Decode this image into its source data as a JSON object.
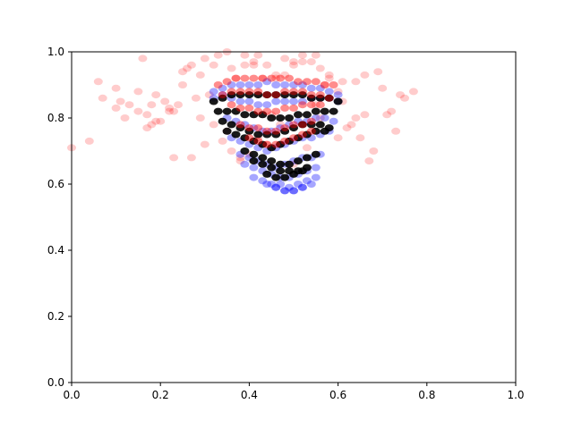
{
  "chart_data": {
    "type": "scatter",
    "title": "",
    "xlabel": "",
    "ylabel": "",
    "xlim": [
      0,
      1
    ],
    "ylim": [
      0,
      1
    ],
    "grid": false,
    "legend": "none",
    "x_ticks": [
      "0.0",
      "0.2",
      "0.4",
      "0.6",
      "0.8",
      "1.0"
    ],
    "y_ticks": [
      "0.0",
      "0.2",
      "0.4",
      "0.6",
      "0.8",
      "1.0"
    ],
    "series": [
      {
        "color": "#ff0000",
        "opacity": 0.2,
        "x": [
          0.0,
          0.04,
          0.06,
          0.1,
          0.1,
          0.11,
          0.13,
          0.15,
          0.15,
          0.16,
          0.17,
          0.18,
          0.18,
          0.19,
          0.2,
          0.21,
          0.22,
          0.23,
          0.24,
          0.25,
          0.26,
          0.27,
          0.28,
          0.29,
          0.3,
          0.31,
          0.32,
          0.33,
          0.35,
          0.36,
          0.37,
          0.39,
          0.41,
          0.42,
          0.44,
          0.46,
          0.48,
          0.5,
          0.52,
          0.54,
          0.56,
          0.58,
          0.6,
          0.61,
          0.62,
          0.63,
          0.64,
          0.65,
          0.66,
          0.67,
          0.68,
          0.69,
          0.7,
          0.72,
          0.73,
          0.74,
          0.75,
          0.77,
          0.34,
          0.36,
          0.38,
          0.4,
          0.44,
          0.47,
          0.5,
          0.53,
          0.56,
          0.58,
          0.32,
          0.35,
          0.38,
          0.42,
          0.45,
          0.48,
          0.52,
          0.55,
          0.6,
          0.64,
          0.3,
          0.27,
          0.23,
          0.19,
          0.17,
          0.12,
          0.07,
          0.66,
          0.71,
          0.55,
          0.5,
          0.43,
          0.39,
          0.46,
          0.41,
          0.57,
          0.61,
          0.25,
          0.22,
          0.29
        ],
        "y": [
          0.71,
          0.73,
          0.91,
          0.89,
          0.83,
          0.85,
          0.84,
          0.88,
          0.82,
          0.98,
          0.81,
          0.78,
          0.84,
          0.87,
          0.79,
          0.85,
          0.82,
          0.82,
          0.84,
          0.9,
          0.95,
          0.96,
          0.86,
          0.93,
          0.98,
          0.87,
          0.96,
          0.99,
          1.0,
          0.95,
          0.92,
          0.99,
          0.97,
          0.99,
          0.96,
          0.93,
          0.98,
          0.96,
          0.99,
          0.97,
          0.95,
          0.93,
          0.88,
          0.85,
          0.77,
          0.78,
          0.8,
          0.74,
          0.81,
          0.67,
          0.7,
          0.94,
          0.89,
          0.82,
          0.76,
          0.87,
          0.86,
          0.88,
          0.73,
          0.7,
          0.68,
          0.69,
          0.72,
          0.78,
          0.66,
          0.71,
          0.8,
          0.92,
          0.78,
          0.76,
          0.67,
          0.74,
          0.81,
          0.93,
          0.97,
          0.84,
          0.74,
          0.91,
          0.72,
          0.68,
          0.68,
          0.79,
          0.77,
          0.8,
          0.86,
          0.93,
          0.81,
          0.99,
          0.97,
          0.92,
          0.96,
          0.92,
          0.96,
          0.9,
          0.91,
          0.94,
          0.83,
          0.8
        ]
      },
      {
        "color": "#0000ff",
        "opacity": 0.35,
        "x": [
          0.32,
          0.34,
          0.36,
          0.38,
          0.4,
          0.42,
          0.44,
          0.46,
          0.48,
          0.5,
          0.52,
          0.54,
          0.56,
          0.58,
          0.6,
          0.32,
          0.34,
          0.36,
          0.38,
          0.4,
          0.42,
          0.44,
          0.46,
          0.48,
          0.5,
          0.52,
          0.54,
          0.56,
          0.58,
          0.6,
          0.35,
          0.37,
          0.39,
          0.41,
          0.43,
          0.45,
          0.47,
          0.49,
          0.51,
          0.53,
          0.55,
          0.57,
          0.59,
          0.36,
          0.38,
          0.4,
          0.42,
          0.44,
          0.46,
          0.48,
          0.5,
          0.52,
          0.54,
          0.56,
          0.58,
          0.38,
          0.4,
          0.42,
          0.44,
          0.46,
          0.48,
          0.5,
          0.52,
          0.54,
          0.56,
          0.39,
          0.41,
          0.43,
          0.45,
          0.47,
          0.49,
          0.51,
          0.53,
          0.55,
          0.41,
          0.43,
          0.45,
          0.47,
          0.49,
          0.51,
          0.53,
          0.55,
          0.44,
          0.46,
          0.48,
          0.5,
          0.52,
          0.54,
          0.46,
          0.48,
          0.5,
          0.52
        ],
        "y": [
          0.88,
          0.89,
          0.9,
          0.9,
          0.9,
          0.9,
          0.91,
          0.9,
          0.9,
          0.9,
          0.9,
          0.89,
          0.89,
          0.88,
          0.87,
          0.86,
          0.87,
          0.86,
          0.85,
          0.85,
          0.84,
          0.84,
          0.85,
          0.85,
          0.85,
          0.85,
          0.86,
          0.86,
          0.86,
          0.85,
          0.8,
          0.79,
          0.78,
          0.77,
          0.76,
          0.76,
          0.77,
          0.78,
          0.79,
          0.79,
          0.8,
          0.8,
          0.79,
          0.74,
          0.73,
          0.72,
          0.71,
          0.7,
          0.71,
          0.72,
          0.73,
          0.74,
          0.74,
          0.75,
          0.76,
          0.69,
          0.68,
          0.67,
          0.66,
          0.65,
          0.66,
          0.67,
          0.68,
          0.68,
          0.69,
          0.66,
          0.65,
          0.64,
          0.63,
          0.62,
          0.62,
          0.63,
          0.64,
          0.65,
          0.62,
          0.61,
          0.6,
          0.6,
          0.59,
          0.6,
          0.61,
          0.62,
          0.6,
          0.59,
          0.58,
          0.58,
          0.59,
          0.6,
          0.59,
          0.58,
          0.58,
          0.59
        ]
      },
      {
        "color": "#000000",
        "opacity": 0.9,
        "x": [
          0.32,
          0.34,
          0.36,
          0.38,
          0.4,
          0.42,
          0.44,
          0.46,
          0.48,
          0.5,
          0.52,
          0.54,
          0.56,
          0.58,
          0.6,
          0.33,
          0.35,
          0.37,
          0.39,
          0.41,
          0.43,
          0.45,
          0.47,
          0.49,
          0.51,
          0.53,
          0.55,
          0.57,
          0.59,
          0.34,
          0.36,
          0.38,
          0.4,
          0.42,
          0.44,
          0.46,
          0.48,
          0.5,
          0.52,
          0.54,
          0.56,
          0.58,
          0.35,
          0.37,
          0.39,
          0.41,
          0.43,
          0.45,
          0.47,
          0.49,
          0.51,
          0.53,
          0.55,
          0.57,
          0.39,
          0.41,
          0.43,
          0.45,
          0.47,
          0.49,
          0.51,
          0.53,
          0.55,
          0.41,
          0.43,
          0.45,
          0.47,
          0.49,
          0.51,
          0.53,
          0.44,
          0.46,
          0.48,
          0.5,
          0.52
        ],
        "y": [
          0.85,
          0.86,
          0.87,
          0.87,
          0.87,
          0.87,
          0.87,
          0.87,
          0.87,
          0.87,
          0.87,
          0.86,
          0.86,
          0.86,
          0.85,
          0.82,
          0.82,
          0.82,
          0.81,
          0.81,
          0.81,
          0.8,
          0.8,
          0.8,
          0.81,
          0.81,
          0.82,
          0.82,
          0.82,
          0.79,
          0.78,
          0.77,
          0.76,
          0.75,
          0.75,
          0.75,
          0.76,
          0.77,
          0.78,
          0.78,
          0.78,
          0.77,
          0.76,
          0.75,
          0.74,
          0.73,
          0.72,
          0.71,
          0.72,
          0.73,
          0.74,
          0.75,
          0.76,
          0.76,
          0.7,
          0.69,
          0.68,
          0.67,
          0.66,
          0.66,
          0.67,
          0.68,
          0.69,
          0.67,
          0.66,
          0.65,
          0.64,
          0.64,
          0.64,
          0.65,
          0.63,
          0.62,
          0.62,
          0.63,
          0.64
        ]
      },
      {
        "color": "#ff0000",
        "opacity": 0.45,
        "x": [
          0.33,
          0.35,
          0.37,
          0.39,
          0.41,
          0.43,
          0.45,
          0.47,
          0.49,
          0.51,
          0.53,
          0.55,
          0.57,
          0.59,
          0.34,
          0.36,
          0.38,
          0.4,
          0.42,
          0.44,
          0.46,
          0.48,
          0.5,
          0.52,
          0.54,
          0.56,
          0.58,
          0.36,
          0.38,
          0.4,
          0.42,
          0.44,
          0.46,
          0.48,
          0.5,
          0.52,
          0.54,
          0.56,
          0.38,
          0.4,
          0.42,
          0.44,
          0.46,
          0.48,
          0.5,
          0.52,
          0.54,
          0.4,
          0.42,
          0.44,
          0.46,
          0.48,
          0.5,
          0.52,
          0.54
        ],
        "y": [
          0.9,
          0.91,
          0.92,
          0.92,
          0.92,
          0.92,
          0.92,
          0.92,
          0.92,
          0.91,
          0.91,
          0.91,
          0.9,
          0.9,
          0.87,
          0.88,
          0.88,
          0.88,
          0.88,
          0.87,
          0.87,
          0.88,
          0.88,
          0.88,
          0.87,
          0.87,
          0.86,
          0.84,
          0.83,
          0.83,
          0.82,
          0.82,
          0.82,
          0.83,
          0.83,
          0.84,
          0.84,
          0.84,
          0.78,
          0.77,
          0.77,
          0.76,
          0.76,
          0.77,
          0.78,
          0.78,
          0.79,
          0.74,
          0.73,
          0.72,
          0.72,
          0.73,
          0.74,
          0.75,
          0.76
        ]
      }
    ]
  }
}
